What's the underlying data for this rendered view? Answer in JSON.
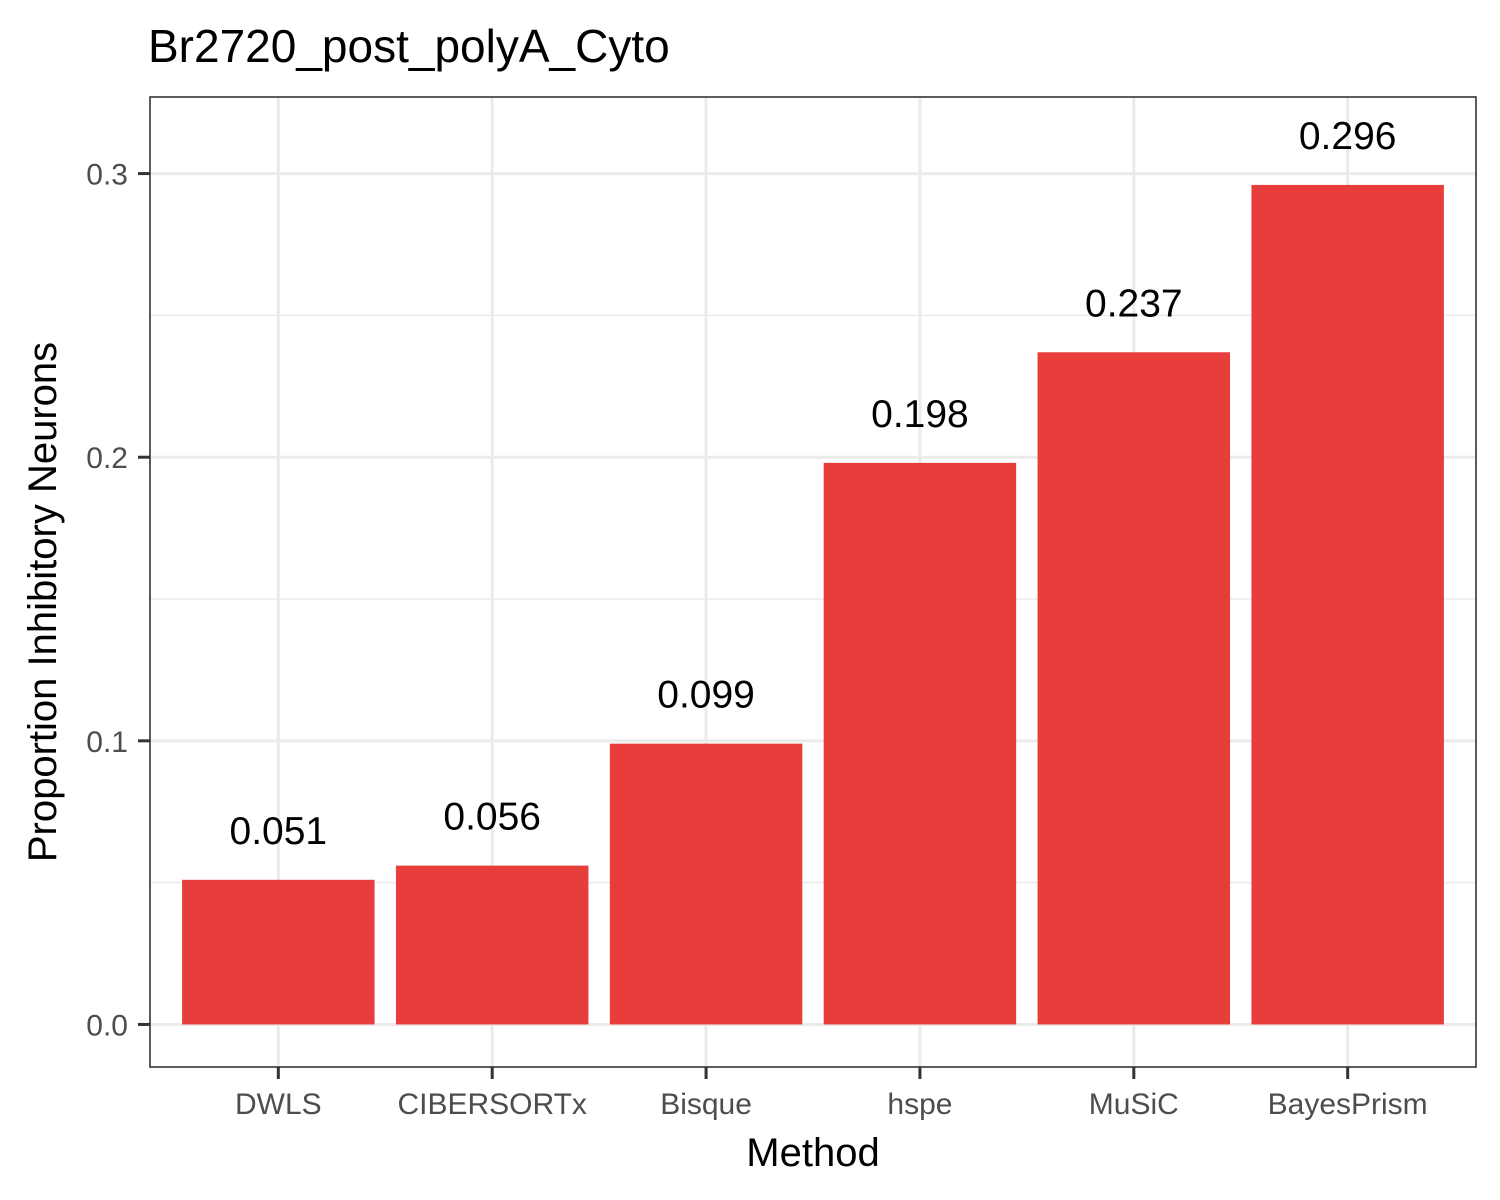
{
  "chart_data": {
    "type": "bar",
    "title": "Br2720_post_polyA_Cyto",
    "xlabel": "Method",
    "ylabel": "Proportion Inhibitory Neurons",
    "categories": [
      "DWLS",
      "CIBERSORTx",
      "Bisque",
      "hspe",
      "MuSiC",
      "BayesPrism"
    ],
    "values": [
      0.051,
      0.056,
      0.099,
      0.198,
      0.237,
      0.296
    ],
    "data_labels": [
      "0.051",
      "0.056",
      "0.099",
      "0.198",
      "0.237",
      "0.296"
    ],
    "ylim": [
      -0.015,
      0.327
    ],
    "yticks": [
      0.0,
      0.1,
      0.2,
      0.3
    ],
    "ytick_labels": [
      "0.0",
      "0.1",
      "0.2",
      "0.3"
    ],
    "grid": true,
    "legend": "none",
    "colors": {
      "bar": "#E83E3B",
      "grid": "#EBEBEB",
      "panel_border": "#333333",
      "tick_label": "#4D4D4D",
      "text": "#000000"
    }
  }
}
